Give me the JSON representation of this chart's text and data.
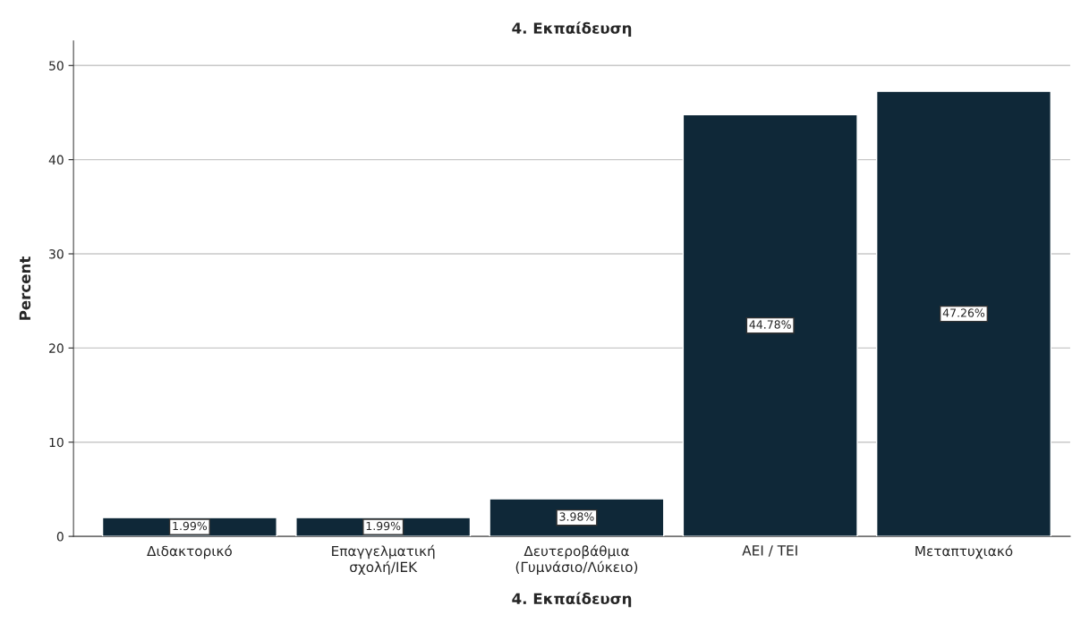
{
  "chart_data": {
    "type": "bar",
    "title": "4. Εκπαίδευση",
    "xlabel": "4. Εκπαίδευση",
    "ylabel": "Percent",
    "categories": [
      "Διδακτορικό",
      "Επαγγελματική\nσχολή/ΙΕΚ",
      "Δευτεροβάθμια\n(Γυμνάσιο/Λύκειο)",
      "ΑΕΙ / ΤΕΙ",
      "Μεταπτυχιακό"
    ],
    "values": [
      1.99,
      1.99,
      3.98,
      44.78,
      47.26
    ],
    "value_labels": [
      "1.99%",
      "1.99%",
      "3.98%",
      "44.78%",
      "47.26%"
    ],
    "color": "#0f2838",
    "ylim": [
      0,
      52.6
    ],
    "yticks": [
      0,
      10,
      20,
      30,
      40,
      50
    ],
    "grid": "y",
    "legend": false
  }
}
